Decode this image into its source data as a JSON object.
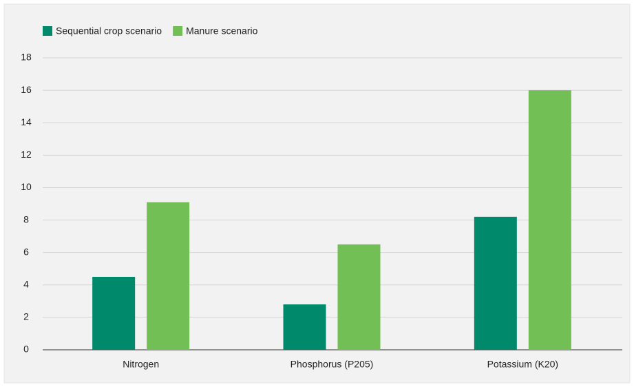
{
  "chart_data": {
    "type": "bar",
    "categories": [
      "Nitrogen",
      "Phosphorus (P205)",
      "Potassium (K20)"
    ],
    "series": [
      {
        "name": "Sequential crop scenario",
        "color": "#00896b",
        "values": [
          4.5,
          2.8,
          8.2
        ]
      },
      {
        "name": "Manure scenario",
        "color": "#72bf55",
        "values": [
          9.1,
          6.5,
          16
        ]
      }
    ],
    "ylim": [
      0,
      18
    ],
    "yticks": [
      0,
      2,
      4,
      6,
      8,
      10,
      12,
      14,
      16,
      18
    ],
    "grid": true,
    "legend": "top-left"
  }
}
